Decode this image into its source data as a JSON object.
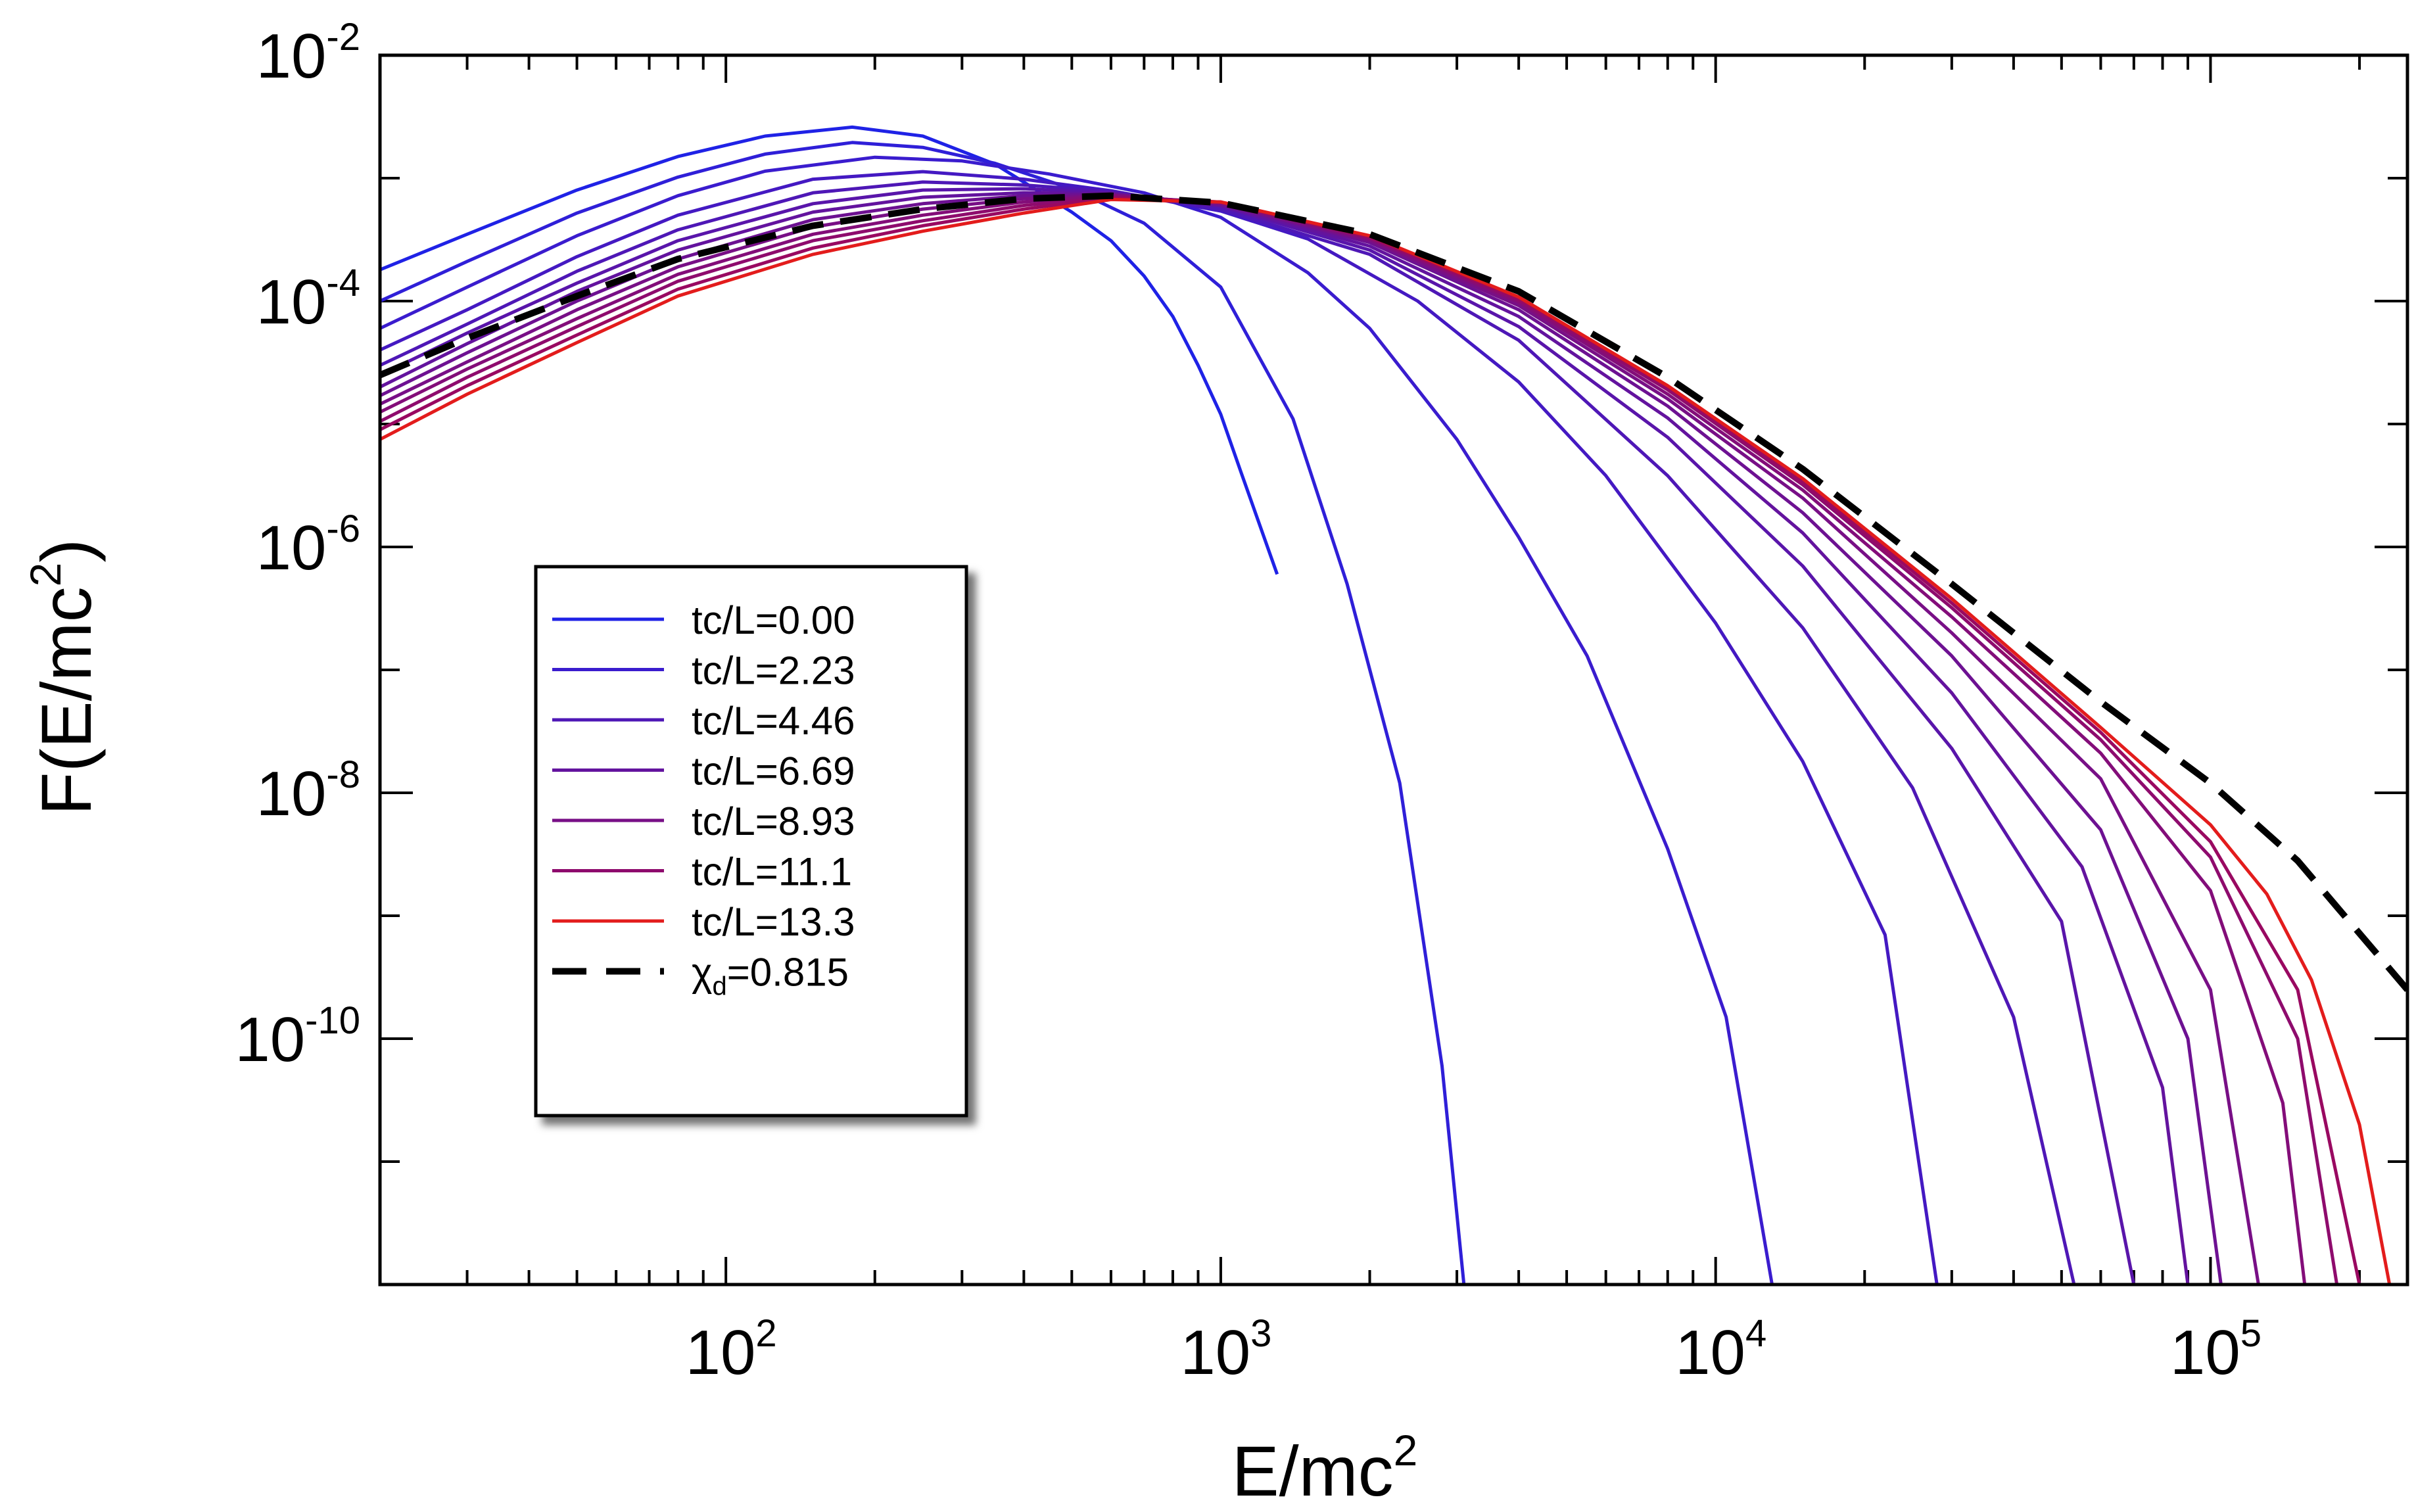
{
  "chart_data": {
    "type": "line",
    "title": "",
    "xlabel": "E/mc",
    "xlabel_sup": "2",
    "ylabel": "F(E/mc",
    "ylabel_sup": "2",
    "ylabel_close": ")",
    "xscale": "log",
    "yscale": "log",
    "xlim": [
      20,
      250000
    ],
    "ylim": [
      1e-12,
      0.01
    ],
    "x_tick_labels": [
      {
        "value": 100,
        "base": "10",
        "exp": "2"
      },
      {
        "value": 1000,
        "base": "10",
        "exp": "3"
      },
      {
        "value": 10000,
        "base": "10",
        "exp": "4"
      },
      {
        "value": 100000,
        "base": "10",
        "exp": "5"
      }
    ],
    "y_tick_labels": [
      {
        "value": 0.01,
        "base": "10",
        "exp": "-2"
      },
      {
        "value": 0.0001,
        "base": "10",
        "exp": "-4"
      },
      {
        "value": 1e-06,
        "base": "10",
        "exp": "-6"
      },
      {
        "value": 1e-08,
        "base": "10",
        "exp": "-8"
      },
      {
        "value": 1e-10,
        "base": "10",
        "exp": "-10"
      }
    ],
    "grid": false,
    "legend_position": "center-left",
    "series": [
      {
        "name": "tc/L=0.00",
        "color": "#1f22e6",
        "x": [
          20,
          30,
          50,
          80,
          120,
          180,
          250,
          350,
          500,
          600,
          700,
          800,
          900,
          1000,
          1100,
          1300
        ],
        "y": [
          0.00018,
          0.00035,
          0.0008,
          0.0015,
          0.0022,
          0.0026,
          0.0022,
          0.0013,
          0.00053,
          0.00031,
          0.00016,
          7.5e-05,
          3e-05,
          1.2e-05,
          4e-06,
          6e-07
        ]
      },
      {
        "name": "",
        "color": "#2f1fd8",
        "x": [
          20,
          30,
          50,
          80,
          120,
          180,
          250,
          350,
          500,
          700,
          1000,
          1400,
          1800,
          2300,
          2800,
          3100
        ],
        "y": [
          0.0001,
          0.00021,
          0.00052,
          0.00102,
          0.00157,
          0.00195,
          0.00178,
          0.00132,
          0.00082,
          0.00043,
          0.00013,
          1.1e-05,
          5e-07,
          1.2e-08,
          6e-11,
          1e-12
        ]
      },
      {
        "name": "tc/L=2.23",
        "color": "#3a1cce",
        "x": [
          20,
          30,
          50,
          80,
          120,
          200,
          300,
          450,
          700,
          1000,
          1500,
          2000,
          3000,
          4000,
          5500,
          8000,
          10500,
          13000
        ],
        "y": [
          6e-05,
          0.00013,
          0.00034,
          0.00072,
          0.00114,
          0.00148,
          0.00138,
          0.00108,
          0.00076,
          0.00048,
          0.00017,
          6e-05,
          7.5e-06,
          1.2e-06,
          1.3e-07,
          3.5e-09,
          1.5e-10,
          1e-12
        ]
      },
      {
        "name": "",
        "color": "#4419c2",
        "x": [
          20,
          30,
          50,
          80,
          150,
          250,
          400,
          600,
          1000,
          1500,
          2500,
          4000,
          6000,
          10000,
          15000,
          22000,
          28000
        ],
        "y": [
          4e-05,
          8.5e-05,
          0.00023,
          0.0005,
          0.00098,
          0.00113,
          0.00098,
          0.00079,
          0.00054,
          0.00032,
          0.0001,
          2.2e-05,
          3.8e-06,
          2.4e-07,
          1.8e-08,
          7e-10,
          1e-12
        ]
      },
      {
        "name": "tc/L=4.46",
        "color": "#4e17b6",
        "x": [
          20,
          30,
          50,
          80,
          150,
          250,
          400,
          600,
          1000,
          2000,
          4000,
          8000,
          15000,
          25000,
          40000,
          53000
        ],
        "y": [
          3e-05,
          6.5e-05,
          0.000175,
          0.00038,
          0.00076,
          0.00093,
          0.00088,
          0.00078,
          0.00056,
          0.00024,
          4.8e-05,
          3.8e-06,
          2.2e-07,
          1.1e-08,
          1.5e-10,
          1e-12
        ]
      },
      {
        "name": "",
        "color": "#5915aa",
        "x": [
          20,
          30,
          50,
          80,
          150,
          250,
          400,
          600,
          1000,
          2000,
          4000,
          8000,
          15000,
          30000,
          50000,
          70000
        ],
        "y": [
          2.5e-05,
          5.5e-05,
          0.00014,
          0.00031,
          0.00062,
          0.0008,
          0.00082,
          0.00076,
          0.00059,
          0.00026,
          6.2e-05,
          7.8e-06,
          7e-07,
          2.3e-08,
          9e-10,
          1e-12
        ]
      },
      {
        "name": "tc/L=6.69",
        "color": "#63139e",
        "x": [
          20,
          30,
          50,
          80,
          150,
          250,
          400,
          600,
          1000,
          2000,
          4000,
          8000,
          15000,
          30000,
          55000,
          80000,
          90000
        ],
        "y": [
          2e-05,
          4.5e-05,
          0.00012,
          0.00026,
          0.00053,
          0.0007,
          0.00076,
          0.00075,
          0.0006,
          0.00028,
          7.5e-05,
          1.12e-05,
          1.3e-06,
          6.5e-08,
          2.5e-09,
          4e-11,
          1e-12
        ]
      },
      {
        "name": "",
        "color": "#6d1192",
        "x": [
          20,
          30,
          50,
          80,
          150,
          250,
          400,
          600,
          1000,
          2000,
          4000,
          8000,
          15000,
          30000,
          60000,
          90000,
          105000
        ],
        "y": [
          1.7e-05,
          3.8e-05,
          0.0001,
          0.00022,
          0.00046,
          0.00062,
          0.00072,
          0.00074,
          0.00061,
          0.0003,
          8.5e-05,
          1.4e-05,
          1.9e-06,
          1.3e-07,
          5e-09,
          1e-10,
          1e-12
        ]
      },
      {
        "name": "tc/L=8.93",
        "color": "#780f86",
        "x": [
          20,
          30,
          50,
          80,
          150,
          250,
          400,
          600,
          1000,
          2000,
          4000,
          8000,
          15000,
          30000,
          60000,
          100000,
          125000
        ],
        "y": [
          1.45e-05,
          3.2e-05,
          8.5e-05,
          0.00019,
          0.0004,
          0.00056,
          0.00068,
          0.00073,
          0.00062,
          0.00031,
          9.2e-05,
          1.6e-05,
          2.5e-06,
          2e-07,
          1.3e-08,
          2.5e-10,
          1e-12
        ]
      },
      {
        "name": "",
        "color": "#830d79",
        "x": [
          20,
          30,
          50,
          80,
          150,
          250,
          400,
          600,
          1000,
          2000,
          4000,
          8000,
          15000,
          30000,
          60000,
          100000,
          140000,
          155000
        ],
        "y": [
          1.25e-05,
          2.8e-05,
          7.2e-05,
          0.000165,
          0.00035,
          0.0005,
          0.00064,
          0.00072,
          0.00063,
          0.00032,
          9.8e-05,
          1.75e-05,
          2.9e-06,
          2.7e-07,
          2.1e-08,
          1.6e-09,
          3e-11,
          1e-12
        ]
      },
      {
        "name": "tc/L=11.1",
        "color": "#8e0b6d",
        "x": [
          20,
          30,
          50,
          80,
          150,
          250,
          400,
          600,
          1000,
          2000,
          4000,
          8000,
          15000,
          30000,
          60000,
          100000,
          150000,
          180000
        ],
        "y": [
          1.05e-05,
          2.4e-05,
          6.2e-05,
          0.000145,
          0.00031,
          0.00045,
          0.0006,
          0.0007,
          0.00064,
          0.00033,
          0.000102,
          1.9e-05,
          3.2e-06,
          3.2e-07,
          2.7e-08,
          3e-09,
          1e-10,
          1e-12
        ]
      },
      {
        "name": "",
        "color": "#990961",
        "x": [
          20,
          30,
          50,
          80,
          150,
          250,
          400,
          600,
          1000,
          2000,
          4000,
          8000,
          15000,
          30000,
          60000,
          100000,
          150000,
          200000
        ],
        "y": [
          9e-06,
          2.05e-05,
          5.3e-05,
          0.000125,
          0.00027,
          0.00041,
          0.00056,
          0.00069,
          0.00064,
          0.00033,
          0.000105,
          2e-05,
          3.4e-06,
          3.5e-07,
          3.1e-08,
          4e-09,
          2.5e-10,
          1e-12
        ]
      },
      {
        "name": "tc/L=13.3",
        "color": "#e31c1c",
        "x": [
          20,
          30,
          50,
          80,
          150,
          250,
          400,
          600,
          1000,
          2000,
          4000,
          8000,
          15000,
          30000,
          60000,
          100000,
          130000,
          160000,
          200000,
          230000
        ],
        "y": [
          7.5e-06,
          1.75e-05,
          4.6e-05,
          0.00011,
          0.00024,
          0.00037,
          0.00052,
          0.00067,
          0.00064,
          0.00034,
          0.000108,
          2.05e-05,
          3.6e-06,
          3.8e-07,
          3.4e-08,
          5.5e-09,
          1.5e-09,
          3e-10,
          2e-11,
          1e-12
        ]
      },
      {
        "name": "χd=0.815",
        "color": "#000000",
        "dashed": true,
        "x": [
          20,
          30,
          50,
          80,
          150,
          250,
          400,
          600,
          1000,
          2000,
          4000,
          8000,
          15000,
          30000,
          60000,
          100000,
          150000,
          250000
        ],
        "y": [
          2.5e-05,
          5e-05,
          0.00011,
          0.00022,
          0.00041,
          0.00056,
          0.00068,
          0.00072,
          0.00063,
          0.00035,
          0.00012,
          2.4e-05,
          4.3e-06,
          5e-07,
          5.5e-08,
          1.2e-08,
          2.8e-09,
          2.5e-10
        ]
      }
    ],
    "legend": [
      {
        "label": "tc/L=0.00",
        "color": "#1f22e6"
      },
      {
        "label": "tc/L=2.23",
        "color": "#3a1cce"
      },
      {
        "label": "tc/L=4.46",
        "color": "#4e17b6"
      },
      {
        "label": "tc/L=6.69",
        "color": "#63139e"
      },
      {
        "label": "tc/L=8.93",
        "color": "#780f86"
      },
      {
        "label": "tc/L=11.1",
        "color": "#8e0b6d"
      },
      {
        "label": "tc/L=13.3",
        "color": "#e31c1c"
      },
      {
        "label": "",
        "label_symbol": "χ",
        "label_sub": "d",
        "label_rest": "=0.815",
        "color": "#000000",
        "dashed": true
      }
    ]
  }
}
